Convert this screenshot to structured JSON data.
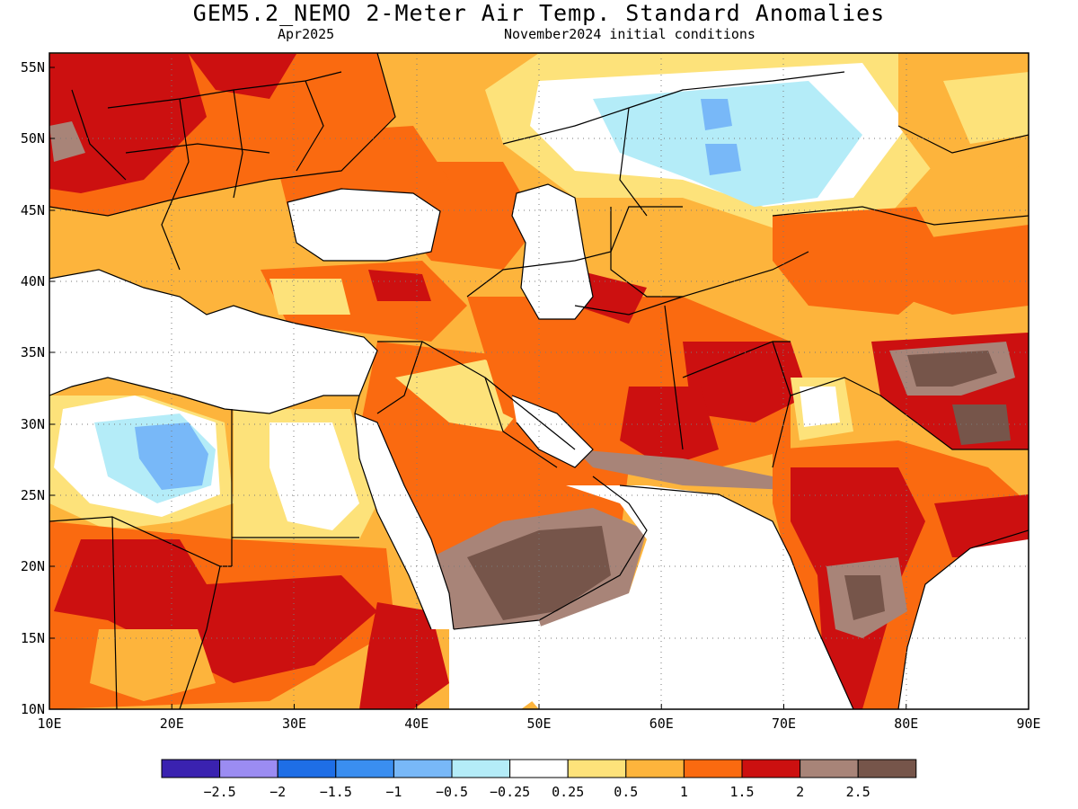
{
  "title": "GEM5.2_NEMO 2-Meter Air Temp. Standard Anomalies",
  "subtitle_left": "Apr2025",
  "subtitle_right": "November2024 initial conditions",
  "lat_labels": [
    "55N",
    "50N",
    "45N",
    "40N",
    "35N",
    "30N",
    "25N",
    "20N",
    "15N",
    "10N"
  ],
  "lon_labels": [
    "10E",
    "20E",
    "30E",
    "40E",
    "50E",
    "60E",
    "70E",
    "80E",
    "90E"
  ],
  "legend": {
    "colors": [
      "#3a22b0",
      "#9b8cf2",
      "#1e6ee6",
      "#3a8ef0",
      "#78b8f8",
      "#b4ecf8",
      "#ffffff",
      "#fde27a",
      "#fdb43c",
      "#fa6a10",
      "#cc1010",
      "#a88478",
      "#76554a"
    ],
    "labels": [
      "−2.5",
      "−2",
      "−1.5",
      "−1",
      "−0.5",
      "−0.25",
      "0.25",
      "0.5",
      "1",
      "1.5",
      "2",
      "2.5"
    ]
  },
  "map": {
    "extent": {
      "lon_min": 10,
      "lon_max": 90,
      "lat_min": 10,
      "lat_max": 56
    },
    "ocean_color": "#ffffff"
  }
}
